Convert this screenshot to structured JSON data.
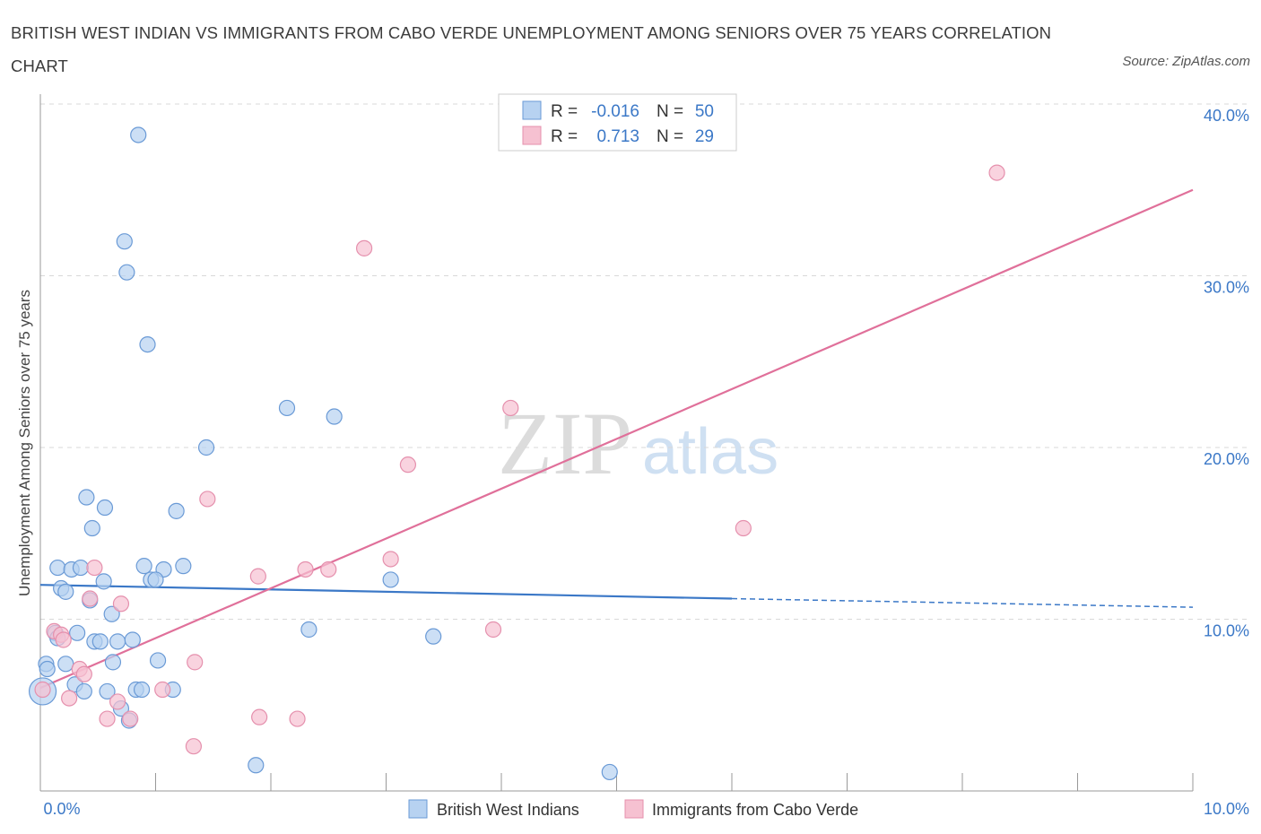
{
  "header": {
    "title": "BRITISH WEST INDIAN VS IMMIGRANTS FROM CABO VERDE UNEMPLOYMENT AMONG SENIORS OVER 75 YEARS CORRELATION CHART",
    "source": "Source: ZipAtlas.com"
  },
  "watermark": {
    "zip": "ZIP",
    "atlas": "atlas"
  },
  "colors": {
    "blue": "#3b78c7",
    "blue_fill": "#b7d2f1",
    "pink": "#e0709a",
    "pink_fill": "#f6c1d1",
    "grid": "#d8d8d8"
  },
  "stats_legend": {
    "rows": [
      {
        "r_label": "R =",
        "r_value": "-0.016",
        "n_label": "N =",
        "n_value": "50",
        "series": "blue"
      },
      {
        "r_label": "R =",
        "r_value": "0.713",
        "n_label": "N =",
        "n_value": "29",
        "series": "pink"
      }
    ]
  },
  "bottom_legend": [
    {
      "label": "British West Indians",
      "series": "blue"
    },
    {
      "label": "Immigrants from Cabo Verde",
      "series": "pink"
    }
  ],
  "chart_data": {
    "type": "scatter",
    "title": "BRITISH WEST INDIAN VS IMMIGRANTS FROM CABO VERDE UNEMPLOYMENT AMONG SENIORS OVER 75 YEARS CORRELATION CHART",
    "xlabel": "",
    "ylabel": "Unemployment Among Seniors over 75 years",
    "xlim": [
      0,
      10
    ],
    "ylim": [
      0,
      40
    ],
    "x_tick_labels": [
      "0.0%",
      "10.0%"
    ],
    "y_ticks": [
      10,
      20,
      30,
      40
    ],
    "y_tick_labels": [
      "10.0%",
      "20.0%",
      "30.0%",
      "40.0%"
    ],
    "series": [
      {
        "name": "British West Indians",
        "color": "#3b78c7",
        "points": [
          [
            0.85,
            38.2
          ],
          [
            0.73,
            32.0
          ],
          [
            0.75,
            30.2
          ],
          [
            0.93,
            26.0
          ],
          [
            2.14,
            22.3
          ],
          [
            2.55,
            21.8
          ],
          [
            1.44,
            20.0
          ],
          [
            0.4,
            17.1
          ],
          [
            0.56,
            16.5
          ],
          [
            1.18,
            16.3
          ],
          [
            0.45,
            15.3
          ],
          [
            0.15,
            13.0
          ],
          [
            0.27,
            12.9
          ],
          [
            0.35,
            13.0
          ],
          [
            0.9,
            13.1
          ],
          [
            1.07,
            12.9
          ],
          [
            1.24,
            13.1
          ],
          [
            0.96,
            12.3
          ],
          [
            1.0,
            12.3
          ],
          [
            0.55,
            12.2
          ],
          [
            3.04,
            12.3
          ],
          [
            0.18,
            11.8
          ],
          [
            0.22,
            11.6
          ],
          [
            0.43,
            11.1
          ],
          [
            0.62,
            10.3
          ],
          [
            2.33,
            9.4
          ],
          [
            0.32,
            9.2
          ],
          [
            0.13,
            9.2
          ],
          [
            0.15,
            8.9
          ],
          [
            0.47,
            8.7
          ],
          [
            0.52,
            8.7
          ],
          [
            0.67,
            8.7
          ],
          [
            0.8,
            8.8
          ],
          [
            3.41,
            9.0
          ],
          [
            0.05,
            7.4
          ],
          [
            0.22,
            7.4
          ],
          [
            0.63,
            7.5
          ],
          [
            1.02,
            7.6
          ],
          [
            0.06,
            7.1
          ],
          [
            0.3,
            6.2
          ],
          [
            0.38,
            5.8
          ],
          [
            0.58,
            5.8
          ],
          [
            0.83,
            5.9
          ],
          [
            0.88,
            5.9
          ],
          [
            1.15,
            5.9
          ],
          [
            0.02,
            5.8
          ],
          [
            0.7,
            4.8
          ],
          [
            0.77,
            4.1
          ],
          [
            1.87,
            1.5
          ],
          [
            4.94,
            1.1
          ]
        ]
      },
      {
        "name": "Immigrants from Cabo Verde",
        "color": "#e0709a",
        "points": [
          [
            8.3,
            36.0
          ],
          [
            2.81,
            31.6
          ],
          [
            4.08,
            22.3
          ],
          [
            3.19,
            19.0
          ],
          [
            1.45,
            17.0
          ],
          [
            6.1,
            15.3
          ],
          [
            3.04,
            13.5
          ],
          [
            1.89,
            12.5
          ],
          [
            2.3,
            12.9
          ],
          [
            2.5,
            12.9
          ],
          [
            0.47,
            13.0
          ],
          [
            0.43,
            11.2
          ],
          [
            0.7,
            10.9
          ],
          [
            0.12,
            9.3
          ],
          [
            0.18,
            9.1
          ],
          [
            0.2,
            8.8
          ],
          [
            3.93,
            9.4
          ],
          [
            1.34,
            7.5
          ],
          [
            0.34,
            7.1
          ],
          [
            0.38,
            6.8
          ],
          [
            1.06,
            5.9
          ],
          [
            0.25,
            5.4
          ],
          [
            0.67,
            5.2
          ],
          [
            1.9,
            4.3
          ],
          [
            2.23,
            4.2
          ],
          [
            0.58,
            4.2
          ],
          [
            0.78,
            4.2
          ],
          [
            1.33,
            2.6
          ],
          [
            0.02,
            5.9
          ]
        ]
      }
    ],
    "trend_lines": [
      {
        "series": "British West Indians",
        "solid": [
          [
            0,
            12.0
          ],
          [
            6.0,
            11.2
          ]
        ],
        "dashed": [
          [
            6.0,
            11.2
          ],
          [
            10.0,
            10.7
          ]
        ]
      },
      {
        "series": "Immigrants from Cabo Verde",
        "solid": [
          [
            0,
            6.0
          ],
          [
            10.0,
            35.0
          ]
        ]
      }
    ]
  }
}
